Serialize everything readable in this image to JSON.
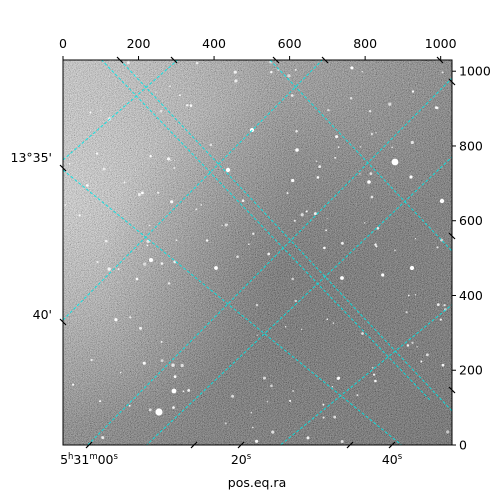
{
  "chart_data": {
    "type": "astronomical-image",
    "colors": {
      "grid": "#00e5e5",
      "frame": "#000000",
      "background": "#ffffff"
    },
    "xlabel": "pos.eq.ra",
    "pixel_x_axis": {
      "ticks": [
        0,
        200,
        400,
        600,
        800,
        1000
      ],
      "range": [
        0,
        1030
      ]
    },
    "pixel_y_axis": {
      "ticks": [
        0,
        200,
        400,
        600,
        800,
        1000
      ],
      "range": [
        0,
        1030
      ]
    },
    "ra_ticks": [
      {
        "label": "5h31m00s",
        "base": "5",
        "sup1": "h",
        "mid": "31",
        "sup2": "m",
        "end": "00",
        "sup3": "s"
      },
      {
        "label": "20s",
        "base": "20",
        "sup3": "s"
      },
      {
        "label": "40s",
        "base": "40",
        "sup3": "s"
      }
    ],
    "dec_ticks": [
      {
        "label": "13°35'",
        "value": "13°35'"
      },
      {
        "label": "40'",
        "value": "40'"
      }
    ]
  }
}
